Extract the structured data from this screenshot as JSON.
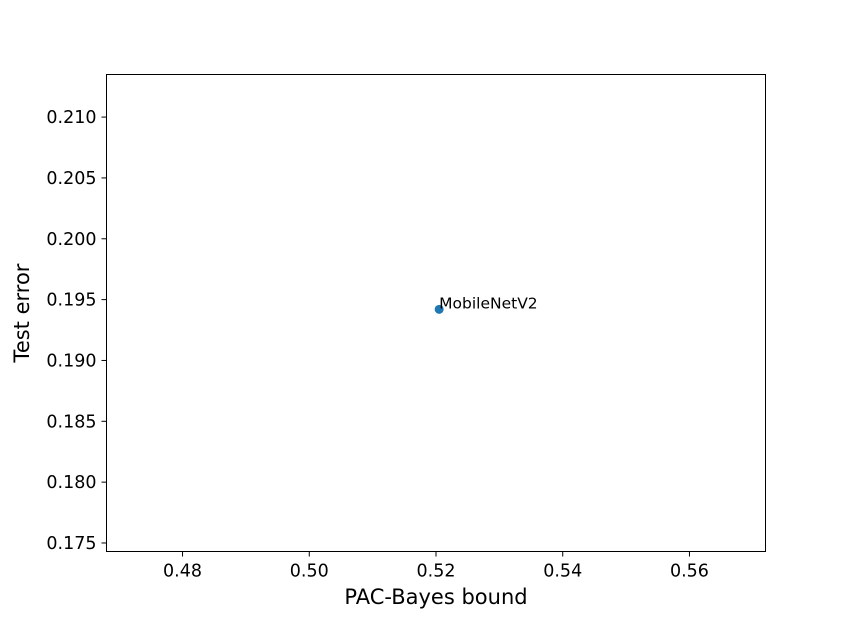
{
  "chart_data": {
    "type": "scatter",
    "title": "",
    "xlabel": "PAC-Bayes bound",
    "ylabel": "Test error",
    "xlim": [
      0.468,
      0.572
    ],
    "ylim": [
      0.1743,
      0.2135
    ],
    "xticks": [
      "0.48",
      "0.50",
      "0.52",
      "0.54",
      "0.56"
    ],
    "yticks": [
      "0.175",
      "0.180",
      "0.185",
      "0.190",
      "0.195",
      "0.200",
      "0.205",
      "0.210"
    ],
    "grid": false,
    "color": "#1f77b4",
    "points": [
      {
        "x": 0.5205,
        "y": 0.1942,
        "label": "MobileNetV2"
      }
    ]
  }
}
